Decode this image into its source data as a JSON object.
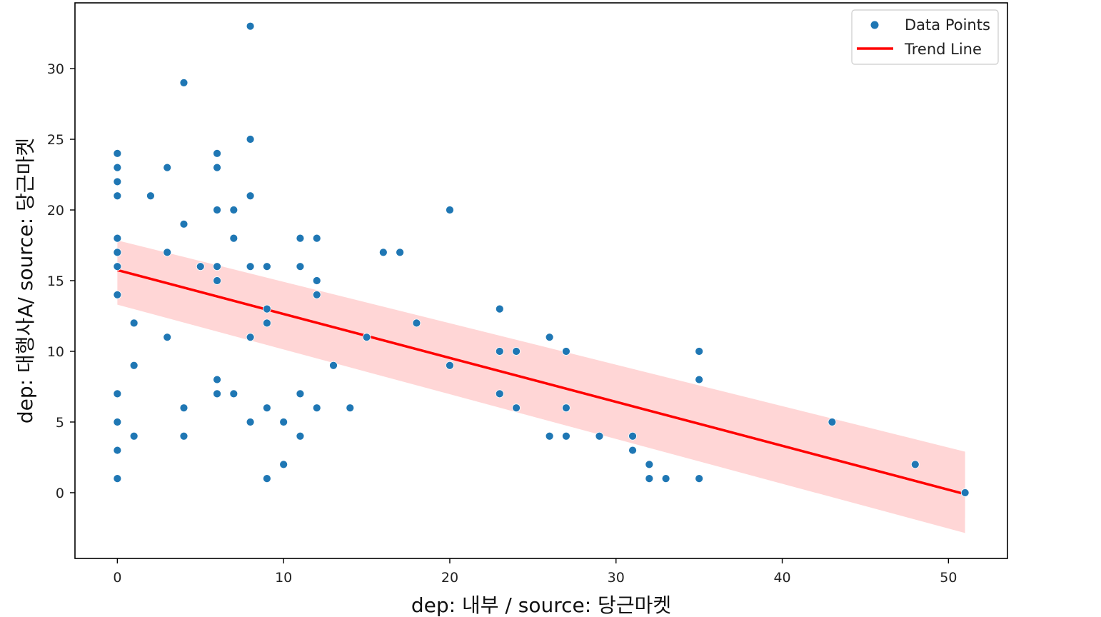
{
  "chart_data": {
    "type": "scatter",
    "title": "",
    "xlabel": "dep: 내부 / source: 당근마켓",
    "ylabel": "dep: 대행사A/ source: 당근마켓",
    "xlim": [
      -2.55,
      53.55
    ],
    "ylim": [
      -4.65,
      34.65
    ],
    "xticks": [
      0,
      10,
      20,
      30,
      40,
      50
    ],
    "yticks": [
      0,
      5,
      10,
      15,
      20,
      25,
      30
    ],
    "grid": false,
    "legend_position": "top-right",
    "legend": [
      {
        "label": "Data Points",
        "kind": "marker",
        "color": "#1f77b4"
      },
      {
        "label": "Trend Line",
        "kind": "line",
        "color": "#ff0000"
      }
    ],
    "colors": {
      "points": "#1f77b4",
      "trend": "#ff0000",
      "band": "#ffcccc"
    },
    "series": [
      {
        "name": "Data Points",
        "points": [
          [
            0,
            24
          ],
          [
            0,
            23
          ],
          [
            0,
            22
          ],
          [
            0,
            21
          ],
          [
            0,
            18
          ],
          [
            0,
            17
          ],
          [
            0,
            16
          ],
          [
            0,
            14
          ],
          [
            0,
            7
          ],
          [
            0,
            5
          ],
          [
            0,
            3
          ],
          [
            0,
            1
          ],
          [
            1,
            12
          ],
          [
            1,
            9
          ],
          [
            1,
            4
          ],
          [
            2,
            21
          ],
          [
            3,
            23
          ],
          [
            3,
            17
          ],
          [
            3,
            11
          ],
          [
            4,
            29
          ],
          [
            4,
            19
          ],
          [
            4,
            6
          ],
          [
            4,
            4
          ],
          [
            5,
            16
          ],
          [
            6,
            24
          ],
          [
            6,
            23
          ],
          [
            6,
            20
          ],
          [
            6,
            16
          ],
          [
            6,
            15
          ],
          [
            6,
            8
          ],
          [
            6,
            7
          ],
          [
            7,
            20
          ],
          [
            7,
            18
          ],
          [
            7,
            7
          ],
          [
            8,
            33
          ],
          [
            8,
            25
          ],
          [
            8,
            21
          ],
          [
            8,
            16
          ],
          [
            8,
            11
          ],
          [
            8,
            5
          ],
          [
            9,
            16
          ],
          [
            9,
            13
          ],
          [
            9,
            12
          ],
          [
            9,
            6
          ],
          [
            9,
            1
          ],
          [
            10,
            5
          ],
          [
            10,
            2
          ],
          [
            11,
            18
          ],
          [
            11,
            16
          ],
          [
            11,
            7
          ],
          [
            11,
            4
          ],
          [
            12,
            18
          ],
          [
            12,
            15
          ],
          [
            12,
            14
          ],
          [
            12,
            6
          ],
          [
            13,
            9
          ],
          [
            14,
            6
          ],
          [
            15,
            11
          ],
          [
            16,
            17
          ],
          [
            17,
            17
          ],
          [
            18,
            12
          ],
          [
            20,
            20
          ],
          [
            20,
            9
          ],
          [
            23,
            13
          ],
          [
            23,
            10
          ],
          [
            23,
            7
          ],
          [
            24,
            10
          ],
          [
            24,
            6
          ],
          [
            26,
            11
          ],
          [
            26,
            4
          ],
          [
            27,
            10
          ],
          [
            27,
            6
          ],
          [
            27,
            4
          ],
          [
            29,
            4
          ],
          [
            31,
            4
          ],
          [
            31,
            3
          ],
          [
            32,
            2
          ],
          [
            32,
            1
          ],
          [
            33,
            1
          ],
          [
            35,
            10
          ],
          [
            35,
            8
          ],
          [
            35,
            1
          ],
          [
            43,
            5
          ],
          [
            48,
            2
          ],
          [
            51,
            0
          ]
        ]
      },
      {
        "name": "Trend Line",
        "line": [
          [
            0,
            15.75
          ],
          [
            51,
            -0.1
          ]
        ],
        "band_upper": [
          [
            0,
            17.85
          ],
          [
            51,
            2.9
          ]
        ],
        "band_lower": [
          [
            0,
            13.3
          ],
          [
            51,
            -2.85
          ]
        ]
      }
    ]
  }
}
